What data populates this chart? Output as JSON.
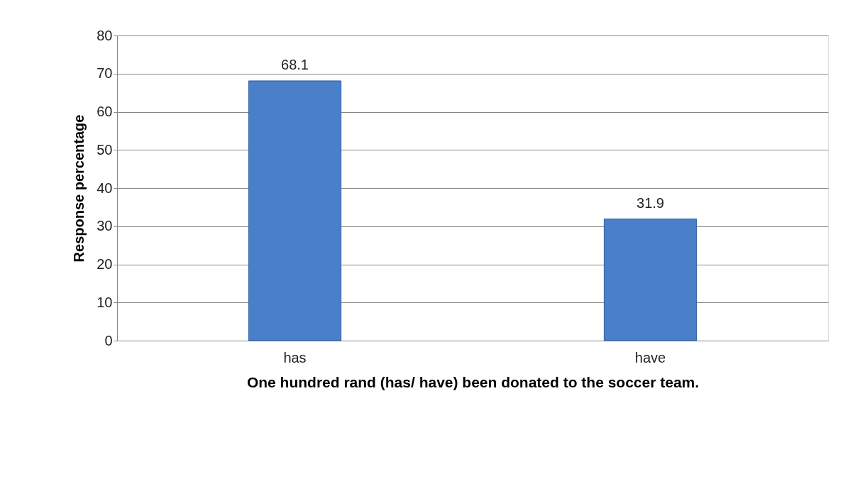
{
  "chart_data": {
    "type": "bar",
    "categories": [
      "has",
      "have"
    ],
    "values": [
      68.1,
      31.9
    ],
    "color": "#4a7fc9",
    "xlabel": "One hundred rand (has/ have) been donated to the soccer team.",
    "ylabel": "Response percentage",
    "ylim": [
      0,
      80
    ],
    "yticks": [
      0,
      10,
      20,
      30,
      40,
      50,
      60,
      70,
      80
    ],
    "grid": "y",
    "data_labels": true
  }
}
